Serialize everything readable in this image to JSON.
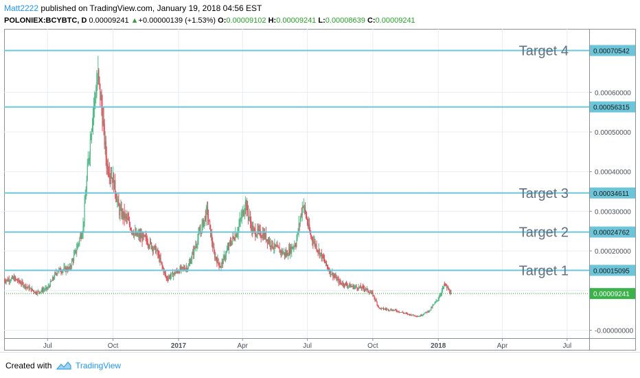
{
  "header": {
    "author": "Matt2222",
    "published": " published on TradingView.com, January 19, 2018 04:56 EST",
    "symbol": "POLONIEX:BCYBTC, D",
    "last": "0.00009241",
    "arrow": "▲",
    "change": "+0.00000139 (+1.53%)",
    "o_label": "O:",
    "o_value": "0.00009102",
    "h_label": "H:",
    "h_value": "0.00009241",
    "l_label": "L:",
    "l_value": "0.00008639",
    "c_label": "C:",
    "c_value": "0.00009241"
  },
  "footer": {
    "created_with": "Created with",
    "brand": "TradingView"
  },
  "colors": {
    "up": "#53b987",
    "down": "#eb4d5c",
    "target_line": "#6dc5da",
    "price_dotted": "#26a026",
    "grid": "#e8edf3"
  },
  "chart_data": {
    "type": "candlestick",
    "symbol": "POLONIEX:BCYBTC",
    "interval": "D",
    "ylim": [
      -2e-05,
      0.00076
    ],
    "y_ticks": [
      "0.00060000",
      "0.00050000",
      "0.00040000",
      "0.00030000",
      "0.00020000",
      "0.00010000",
      "-0.00000000"
    ],
    "y_tick_values": [
      0.0006,
      0.0005,
      0.0004,
      0.0003,
      0.0002,
      0.0001,
      0.0
    ],
    "x_ticks": [
      "Jul",
      "Oct",
      "2017",
      "Apr",
      "Jul",
      "Oct",
      "2018",
      "Apr",
      "Jul"
    ],
    "x_tick_dates": [
      "2016-07-01",
      "2016-10-01",
      "2017-01-01",
      "2017-04-01",
      "2017-07-01",
      "2017-10-01",
      "2018-01-01",
      "2018-04-01",
      "2018-07-01"
    ],
    "x_range": [
      "2016-05-01",
      "2018-08-01"
    ],
    "bold_ticks": [
      "2017",
      "2018"
    ],
    "targets": [
      {
        "label": "Target 4",
        "value": 0.00070542,
        "tag": "0.00070542"
      },
      {
        "label": "",
        "value": 0.00056315,
        "tag": "0.00056315"
      },
      {
        "label": "Target 3",
        "value": 0.00034611,
        "tag": "0.00034611"
      },
      {
        "label": "Target 2",
        "value": 0.00024762,
        "tag": "0.00024762"
      },
      {
        "label": "Target 1",
        "value": 0.00015095,
        "tag": "0.00015095"
      }
    ],
    "last_price": {
      "value": 9.241e-05,
      "tag": "0.00009241"
    },
    "path": [
      [
        "2016-05-01",
        0.000125
      ],
      [
        "2016-05-15",
        0.00013
      ],
      [
        "2016-06-01",
        0.00011
      ],
      [
        "2016-06-15",
        9.5e-05
      ],
      [
        "2016-07-01",
        0.000105
      ],
      [
        "2016-07-15",
        0.00015
      ],
      [
        "2016-08-01",
        0.000155
      ],
      [
        "2016-08-10",
        0.0002
      ],
      [
        "2016-08-20",
        0.00026
      ],
      [
        "2016-08-27",
        0.00042
      ],
      [
        "2016-09-02",
        0.00054
      ],
      [
        "2016-09-10",
        0.00064
      ],
      [
        "2016-09-15",
        0.00056
      ],
      [
        "2016-09-22",
        0.00042
      ],
      [
        "2016-10-01",
        0.00038
      ],
      [
        "2016-10-10",
        0.0003
      ],
      [
        "2016-10-20",
        0.00028
      ],
      [
        "2016-11-01",
        0.00024
      ],
      [
        "2016-11-15",
        0.00023
      ],
      [
        "2016-12-01",
        0.0002
      ],
      [
        "2016-12-15",
        0.00013
      ],
      [
        "2017-01-01",
        0.00015
      ],
      [
        "2017-01-15",
        0.00016
      ],
      [
        "2017-02-01",
        0.00025
      ],
      [
        "2017-02-10",
        0.0003
      ],
      [
        "2017-02-20",
        0.00019
      ],
      [
        "2017-03-01",
        0.00016
      ],
      [
        "2017-03-15",
        0.00022
      ],
      [
        "2017-03-25",
        0.00025
      ],
      [
        "2017-04-05",
        0.00032
      ],
      [
        "2017-04-15",
        0.00025
      ],
      [
        "2017-05-01",
        0.00024
      ],
      [
        "2017-05-15",
        0.00021
      ],
      [
        "2017-06-01",
        0.00019
      ],
      [
        "2017-06-15",
        0.00022
      ],
      [
        "2017-06-25",
        0.00032
      ],
      [
        "2017-07-05",
        0.00024
      ],
      [
        "2017-07-20",
        0.00019
      ],
      [
        "2017-08-01",
        0.00015
      ],
      [
        "2017-08-15",
        0.00012
      ],
      [
        "2017-09-01",
        0.00011
      ],
      [
        "2017-09-20",
        0.000105
      ],
      [
        "2017-10-01",
        9e-05
      ],
      [
        "2017-10-10",
        5.5e-05
      ],
      [
        "2017-11-01",
        5e-05
      ],
      [
        "2017-11-20",
        4e-05
      ],
      [
        "2017-12-05",
        3.5e-05
      ],
      [
        "2017-12-20",
        5e-05
      ],
      [
        "2018-01-01",
        8e-05
      ],
      [
        "2018-01-10",
        0.000115
      ],
      [
        "2018-01-19",
        9.241e-05
      ]
    ]
  }
}
